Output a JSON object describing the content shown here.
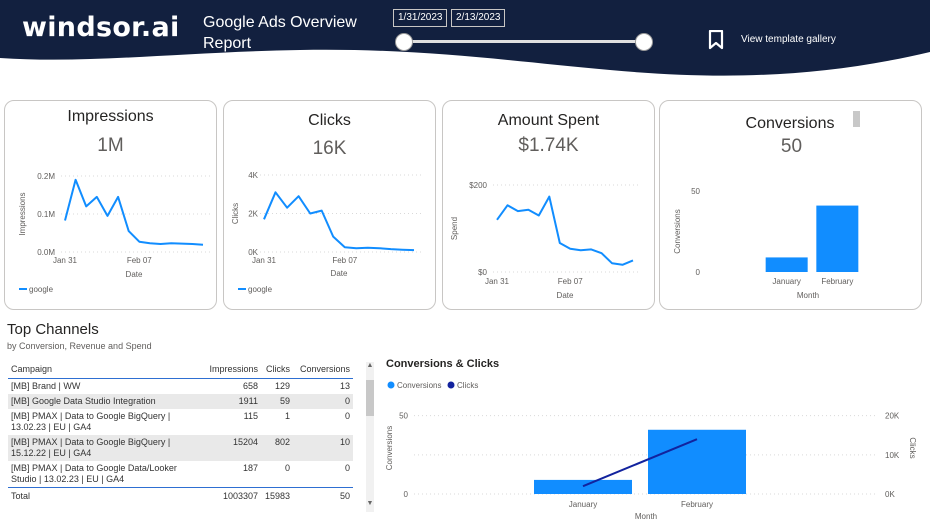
{
  "header": {
    "brand": "windsor.ai",
    "title": "Google Ads Overview Report",
    "date_start": "1/31/2023",
    "date_end": "2/13/2023",
    "gallery_link": "View template gallery",
    "colors": {
      "background": "#12203f",
      "accent": "#118dff"
    }
  },
  "kpi_cards": [
    {
      "title": "Impressions",
      "value": "1M",
      "chart_data": {
        "type": "line",
        "x": [
          "Jan 31",
          "Feb 01",
          "Feb 02",
          "Feb 03",
          "Feb 04",
          "Feb 05",
          "Feb 06",
          "Feb 07",
          "Feb 08",
          "Feb 09",
          "Feb 10",
          "Feb 11",
          "Feb 12",
          "Feb 13"
        ],
        "series": [
          {
            "name": "google",
            "values": [
              0.083,
              0.19,
              0.12,
              0.145,
              0.095,
              0.145,
              0.055,
              0.027,
              0.023,
              0.021,
              0.023,
              0.022,
              0.021,
              0.019
            ]
          }
        ],
        "yticks": [
          "0.0M",
          "0.1M",
          "0.2M"
        ],
        "ylim": [
          0,
          0.2
        ],
        "xticks": [
          "Jan 31",
          "Feb 07"
        ],
        "xlabel": "Date",
        "ylabel": "Impressions",
        "legend": "bottom-left"
      }
    },
    {
      "title": "Clicks",
      "value": "16K",
      "chart_data": {
        "type": "line",
        "x": [
          "Jan 31",
          "Feb 01",
          "Feb 02",
          "Feb 03",
          "Feb 04",
          "Feb 05",
          "Feb 06",
          "Feb 07",
          "Feb 08",
          "Feb 09",
          "Feb 10",
          "Feb 11",
          "Feb 12",
          "Feb 13"
        ],
        "series": [
          {
            "name": "google",
            "values": [
              1700,
              3100,
              2300,
              2900,
              2000,
              2150,
              800,
              250,
              200,
              220,
              200,
              150,
              120,
              100
            ]
          }
        ],
        "yticks": [
          "0K",
          "2K",
          "4K"
        ],
        "ylim": [
          0,
          4000
        ],
        "xticks": [
          "Jan 31",
          "Feb 07"
        ],
        "xlabel": "Date",
        "ylabel": "Clicks",
        "legend": "bottom-left"
      }
    },
    {
      "title": "Amount Spent",
      "value": "$1.74K",
      "chart_data": {
        "type": "line",
        "x": [
          "Jan 31",
          "Feb 01",
          "Feb 02",
          "Feb 03",
          "Feb 04",
          "Feb 05",
          "Feb 06",
          "Feb 07",
          "Feb 08",
          "Feb 09",
          "Feb 10",
          "Feb 11",
          "Feb 12",
          "Feb 13"
        ],
        "series": [
          {
            "name": "",
            "values": [
              180,
              230,
              210,
              215,
              195,
              260,
              100,
              80,
              75,
              78,
              65,
              30,
              25,
              40
            ]
          }
        ],
        "yticks": [
          "$0",
          "$200"
        ],
        "ylim": [
          0,
          300
        ],
        "xticks": [
          "Jan 31",
          "Feb 07"
        ],
        "xlabel": "Date",
        "ylabel": "Spend"
      }
    },
    {
      "title": "Conversions",
      "value": "50",
      "chart_data": {
        "type": "bar",
        "categories": [
          "January",
          "February"
        ],
        "values": [
          9,
          41
        ],
        "yticks": [
          "0",
          "50"
        ],
        "ylim": [
          0,
          50
        ],
        "xlabel": "Month",
        "ylabel": "Conversions"
      }
    }
  ],
  "top_channels": {
    "title": "Top Channels",
    "subtitle": "by Conversion, Revenue and Spend",
    "columns": [
      "Campaign",
      "Impressions",
      "Clicks",
      "Conversions"
    ],
    "rows": [
      {
        "campaign": "[MB] Brand | WW",
        "impressions": "658",
        "clicks": "129",
        "conversions": "13"
      },
      {
        "campaign": "[MB] Google Data Studio Integration",
        "impressions": "1911",
        "clicks": "59",
        "conversions": "0"
      },
      {
        "campaign": "[MB] PMAX | Data to Google BigQuery | 13.02.23 | EU | GA4",
        "impressions": "115",
        "clicks": "1",
        "conversions": "0"
      },
      {
        "campaign": "[MB] PMAX | Data to Google BigQuery | 15.12.22 | EU | GA4",
        "impressions": "15204",
        "clicks": "802",
        "conversions": "10"
      },
      {
        "campaign": "[MB] PMAX | Data to Google Data/Looker Studio | 13.02.23 | EU | GA4",
        "impressions": "187",
        "clicks": "0",
        "conversions": "0"
      }
    ],
    "total": {
      "label": "Total",
      "impressions": "1003307",
      "clicks": "15983",
      "conversions": "50"
    }
  },
  "combo_chart": {
    "title": "Conversions & Clicks",
    "chart_data": {
      "type": "bar",
      "categories": [
        "January",
        "February"
      ],
      "series": [
        {
          "name": "Conversions",
          "type": "bar",
          "axis": "left",
          "values": [
            9,
            41
          ],
          "color": "#118dff"
        },
        {
          "name": "Clicks",
          "type": "line",
          "axis": "right",
          "values": [
            2000,
            14000
          ],
          "color": "#12239e"
        }
      ],
      "ylim_left": [
        0,
        60
      ],
      "yticks_left": [
        "0",
        "50"
      ],
      "ylim_right": [
        0,
        24000
      ],
      "yticks_right": [
        "0K",
        "10K",
        "20K"
      ],
      "xlabel": "Month",
      "ylabel_left": "Conversions",
      "ylabel_right": "Clicks",
      "legend": "top-left"
    }
  }
}
